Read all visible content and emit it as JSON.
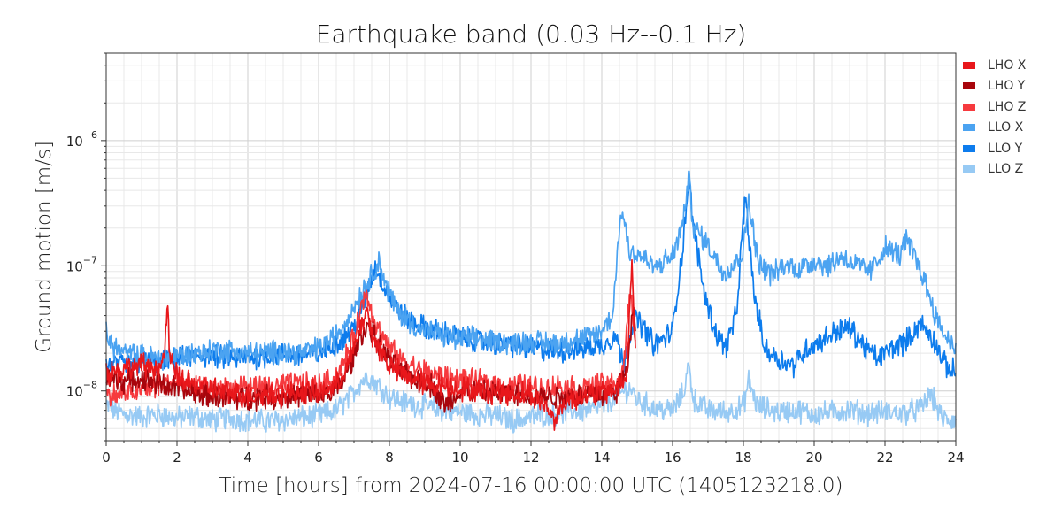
{
  "chart_data": {
    "type": "line",
    "title": "Earthquake band (0.03 Hz--0.1 Hz)",
    "xlabel": "Time [hours] from 2024-07-16 00:00:00 UTC (1405123218.0)",
    "ylabel": "Ground motion [m/s]",
    "xlim": [
      0,
      24
    ],
    "ylim": [
      4e-09,
      5e-06
    ],
    "yscale": "log",
    "grid": true,
    "legend_position": "right-top",
    "x_ticks": [
      "0",
      "2",
      "4",
      "6",
      "8",
      "10",
      "12",
      "14",
      "16",
      "18",
      "20",
      "22",
      "24"
    ],
    "series": [
      {
        "name": "LHO X",
        "color": "#e8171b",
        "points": [
          [
            0,
            1.4e-08
          ],
          [
            0.5,
            1.5e-08
          ],
          [
            1,
            1.6e-08
          ],
          [
            1.5,
            1.5e-08
          ],
          [
            1.65,
            1.9e-08
          ],
          [
            1.72,
            5e-08
          ],
          [
            1.8,
            1.8e-08
          ],
          [
            2,
            1.3e-08
          ],
          [
            2.5,
            1.1e-08
          ],
          [
            3,
            1.05e-08
          ],
          [
            3.5,
            9.5e-09
          ],
          [
            4,
            9.2e-09
          ],
          [
            4.5,
            9.5e-09
          ],
          [
            5,
            9.4e-09
          ],
          [
            5.5,
            9.8e-09
          ],
          [
            6,
            9.6e-09
          ],
          [
            6.5,
            1.1e-08
          ],
          [
            6.9,
            1.8e-08
          ],
          [
            7.2,
            3.2e-08
          ],
          [
            7.35,
            4.5e-08
          ],
          [
            7.5,
            2.8e-08
          ],
          [
            7.8,
            2e-08
          ],
          [
            8,
            1.6e-08
          ],
          [
            8.5,
            1.3e-08
          ],
          [
            9,
            1.15e-08
          ],
          [
            9.5,
            1.1e-08
          ],
          [
            10,
            1.05e-08
          ],
          [
            10.5,
            1e-08
          ],
          [
            11,
            9.8e-09
          ],
          [
            11.5,
            9.6e-09
          ],
          [
            12,
            9.5e-09
          ],
          [
            12.5,
            7e-09
          ],
          [
            12.7,
            6e-09
          ],
          [
            13,
            8.5e-09
          ],
          [
            13.5,
            9.2e-09
          ],
          [
            14,
            9.6e-09
          ],
          [
            14.4,
            1.05e-08
          ],
          [
            14.7,
            1.3e-08
          ],
          [
            14.85,
            1.05e-07
          ],
          [
            14.95,
            2.2e-08
          ]
        ]
      },
      {
        "name": "LHO Y",
        "color": "#a8050c",
        "points": [
          [
            0,
            1.25e-08
          ],
          [
            0.5,
            1.2e-08
          ],
          [
            1,
            1.25e-08
          ],
          [
            1.5,
            1.15e-08
          ],
          [
            2,
            1.05e-08
          ],
          [
            2.5,
            9.5e-09
          ],
          [
            3,
            9.2e-09
          ],
          [
            3.5,
            8.8e-09
          ],
          [
            4,
            8.8e-09
          ],
          [
            4.5,
            9e-09
          ],
          [
            5,
            8.9e-09
          ],
          [
            5.5,
            9.2e-09
          ],
          [
            6,
            9e-09
          ],
          [
            6.5,
            1e-08
          ],
          [
            6.9,
            1.6e-08
          ],
          [
            7.2,
            2.8e-08
          ],
          [
            7.4,
            3.4e-08
          ],
          [
            7.6,
            2.6e-08
          ],
          [
            7.9,
            1.9e-08
          ],
          [
            8.2,
            1.5e-08
          ],
          [
            8.7,
            1.25e-08
          ],
          [
            9.2,
            1.1e-08
          ],
          [
            9.6,
            7.5e-09
          ],
          [
            10,
            1e-08
          ],
          [
            10.5,
            9.8e-09
          ],
          [
            11,
            9.5e-09
          ],
          [
            11.5,
            9.3e-09
          ],
          [
            12,
            9.2e-09
          ],
          [
            12.5,
            9e-09
          ],
          [
            13,
            9.1e-09
          ],
          [
            13.5,
            9.3e-09
          ],
          [
            14,
            9.4e-09
          ],
          [
            14.4,
            9.8e-09
          ],
          [
            14.7,
            1.4e-08
          ],
          [
            14.9,
            5.5e-08
          ],
          [
            14.95,
            3e-08
          ]
        ]
      },
      {
        "name": "LHO Z",
        "color": "#f63a3e",
        "points": [
          [
            0,
            9e-09
          ],
          [
            0.5,
            9.5e-09
          ],
          [
            1,
            1e-08
          ],
          [
            1.5,
            1.1e-08
          ],
          [
            2,
            1.2e-08
          ],
          [
            2.5,
            1.1e-08
          ],
          [
            3,
            1e-08
          ],
          [
            3.5,
            1.05e-08
          ],
          [
            4,
            1.1e-08
          ],
          [
            4.5,
            1.05e-08
          ],
          [
            5,
            1.1e-08
          ],
          [
            5.5,
            1.15e-08
          ],
          [
            6,
            1.1e-08
          ],
          [
            6.5,
            1.3e-08
          ],
          [
            6.9,
            2.2e-08
          ],
          [
            7.2,
            4.5e-08
          ],
          [
            7.35,
            6.2e-08
          ],
          [
            7.6,
            3.5e-08
          ],
          [
            7.9,
            2.4e-08
          ],
          [
            8.3,
            1.8e-08
          ],
          [
            8.8,
            1.5e-08
          ],
          [
            9.3,
            1.35e-08
          ],
          [
            9.8,
            1.25e-08
          ],
          [
            10.3,
            1.2e-08
          ],
          [
            10.8,
            1.15e-08
          ],
          [
            11.3,
            1.1e-08
          ],
          [
            11.8,
            1.1e-08
          ],
          [
            12.3,
            1.05e-08
          ],
          [
            12.8,
            1.1e-08
          ],
          [
            13.3,
            1.05e-08
          ],
          [
            13.8,
            1.1e-08
          ],
          [
            14.3,
            1.15e-08
          ],
          [
            14.6,
            1.3e-08
          ],
          [
            14.8,
            6.5e-08
          ],
          [
            14.95,
            2.5e-08
          ]
        ]
      },
      {
        "name": "LLO X",
        "color": "#4ba3f1",
        "points": [
          [
            0,
            3.3e-08
          ],
          [
            0.1,
            2.4e-08
          ],
          [
            0.5,
            2e-08
          ],
          [
            1,
            1.9e-08
          ],
          [
            1.5,
            1.8e-08
          ],
          [
            2,
            1.9e-08
          ],
          [
            2.5,
            2e-08
          ],
          [
            3,
            2.1e-08
          ],
          [
            3.5,
            2.1e-08
          ],
          [
            4,
            2e-08
          ],
          [
            4.5,
            2e-08
          ],
          [
            5,
            2.1e-08
          ],
          [
            5.5,
            2e-08
          ],
          [
            6,
            2.2e-08
          ],
          [
            6.3,
            2.5e-08
          ],
          [
            6.6,
            3e-08
          ],
          [
            6.9,
            4.2e-08
          ],
          [
            7.2,
            6e-08
          ],
          [
            7.5,
            8.5e-08
          ],
          [
            7.7,
            1.1e-07
          ],
          [
            7.9,
            7e-08
          ],
          [
            8.2,
            4.5e-08
          ],
          [
            8.6,
            3.5e-08
          ],
          [
            9,
            3e-08
          ],
          [
            9.5,
            2.8e-08
          ],
          [
            10,
            2.6e-08
          ],
          [
            10.5,
            2.6e-08
          ],
          [
            11,
            2.5e-08
          ],
          [
            11.5,
            2.4e-08
          ],
          [
            12,
            2.5e-08
          ],
          [
            12.5,
            2.4e-08
          ],
          [
            13,
            2.5e-08
          ],
          [
            13.5,
            2.6e-08
          ],
          [
            14,
            3e-08
          ],
          [
            14.3,
            4e-08
          ],
          [
            14.55,
            2.9e-07
          ],
          [
            14.8,
            1.3e-07
          ],
          [
            15.1,
            1.2e-07
          ],
          [
            15.5,
            9.5e-08
          ],
          [
            16,
            1.2e-07
          ],
          [
            16.3,
            2.2e-07
          ],
          [
            16.45,
            5.2e-07
          ],
          [
            16.6,
            2e-07
          ],
          [
            17,
            1.5e-07
          ],
          [
            17.4,
            9e-08
          ],
          [
            17.7,
            1e-07
          ],
          [
            18,
            1.3e-07
          ],
          [
            18.15,
            3.5e-07
          ],
          [
            18.4,
            1.1e-07
          ],
          [
            18.8,
            8.5e-08
          ],
          [
            19.2,
            1e-07
          ],
          [
            19.6,
            9.5e-08
          ],
          [
            20,
            1.1e-07
          ],
          [
            20.4,
            1e-07
          ],
          [
            20.8,
            1.2e-07
          ],
          [
            21.2,
            1e-07
          ],
          [
            21.6,
            9e-08
          ],
          [
            22,
            1.4e-07
          ],
          [
            22.4,
            1.2e-07
          ],
          [
            22.6,
            1.6e-07
          ],
          [
            22.9,
            1.1e-07
          ],
          [
            23.2,
            6.5e-08
          ],
          [
            23.5,
            3.5e-08
          ],
          [
            23.8,
            2.5e-08
          ],
          [
            24,
            2.4e-08
          ]
        ]
      },
      {
        "name": "LLO Y",
        "color": "#0d7ced",
        "points": [
          [
            0,
            1.6e-08
          ],
          [
            0.5,
            1.6e-08
          ],
          [
            1,
            1.7e-08
          ],
          [
            1.5,
            1.65e-08
          ],
          [
            2,
            1.8e-08
          ],
          [
            2.5,
            1.9e-08
          ],
          [
            3,
            1.9e-08
          ],
          [
            3.5,
            1.8e-08
          ],
          [
            4,
            1.85e-08
          ],
          [
            4.5,
            1.9e-08
          ],
          [
            5,
            1.95e-08
          ],
          [
            5.5,
            1.9e-08
          ],
          [
            6,
            2e-08
          ],
          [
            6.5,
            2.4e-08
          ],
          [
            7,
            3.2e-08
          ],
          [
            7.3,
            5.2e-08
          ],
          [
            7.6,
            9.8e-08
          ],
          [
            7.9,
            6.5e-08
          ],
          [
            8.2,
            4.5e-08
          ],
          [
            8.6,
            3.6e-08
          ],
          [
            9,
            3.2e-08
          ],
          [
            9.5,
            2.9e-08
          ],
          [
            10,
            2.7e-08
          ],
          [
            10.5,
            2.5e-08
          ],
          [
            11,
            2.4e-08
          ],
          [
            11.5,
            2.3e-08
          ],
          [
            12,
            2.2e-08
          ],
          [
            12.5,
            2.1e-08
          ],
          [
            13,
            2.1e-08
          ],
          [
            13.5,
            2.2e-08
          ],
          [
            14,
            2.3e-08
          ],
          [
            14.4,
            2.8e-08
          ],
          [
            14.6,
            1.6e-08
          ],
          [
            14.8,
            3e-08
          ],
          [
            15,
            3.8e-08
          ],
          [
            15.5,
            2.3e-08
          ],
          [
            16,
            3e-08
          ],
          [
            16.3,
            1.5e-07
          ],
          [
            16.45,
            5e-07
          ],
          [
            16.6,
            2e-07
          ],
          [
            16.9,
            6e-08
          ],
          [
            17.2,
            3e-08
          ],
          [
            17.5,
            2.2e-08
          ],
          [
            17.8,
            4e-08
          ],
          [
            18.05,
            3.6e-07
          ],
          [
            18.3,
            6e-08
          ],
          [
            18.6,
            2.2e-08
          ],
          [
            19,
            1.8e-08
          ],
          [
            19.4,
            1.6e-08
          ],
          [
            19.8,
            2.2e-08
          ],
          [
            20.2,
            2.5e-08
          ],
          [
            20.6,
            3e-08
          ],
          [
            21,
            3.2e-08
          ],
          [
            21.4,
            2.3e-08
          ],
          [
            21.8,
            1.8e-08
          ],
          [
            22.2,
            2.2e-08
          ],
          [
            22.6,
            2.5e-08
          ],
          [
            23,
            3.5e-08
          ],
          [
            23.4,
            2.5e-08
          ],
          [
            23.7,
            1.6e-08
          ],
          [
            24,
            1.4e-08
          ]
        ]
      },
      {
        "name": "LLO Z",
        "color": "#97caf4",
        "points": [
          [
            0,
            7.5e-09
          ],
          [
            0.5,
            6.5e-09
          ],
          [
            1,
            6.2e-09
          ],
          [
            1.5,
            6.5e-09
          ],
          [
            2,
            6e-09
          ],
          [
            2.5,
            6.3e-09
          ],
          [
            3,
            5.8e-09
          ],
          [
            3.5,
            6.1e-09
          ],
          [
            4,
            5.9e-09
          ],
          [
            4.5,
            5.7e-09
          ],
          [
            5,
            5.9e-09
          ],
          [
            5.5,
            6.1e-09
          ],
          [
            6,
            6.3e-09
          ],
          [
            6.5,
            7e-09
          ],
          [
            6.9,
            9e-09
          ],
          [
            7.2,
            1.2e-08
          ],
          [
            7.4,
            1.3e-08
          ],
          [
            7.7,
            1.1e-08
          ],
          [
            8,
            9e-09
          ],
          [
            8.5,
            8e-09
          ],
          [
            9,
            7.5e-09
          ],
          [
            9.5,
            7e-09
          ],
          [
            10,
            6.8e-09
          ],
          [
            10.5,
            6.5e-09
          ],
          [
            11,
            6.3e-09
          ],
          [
            11.5,
            5.8e-09
          ],
          [
            12,
            6.2e-09
          ],
          [
            12.5,
            6.5e-09
          ],
          [
            13,
            6.8e-09
          ],
          [
            13.5,
            7e-09
          ],
          [
            14,
            7.5e-09
          ],
          [
            14.5,
            9.5e-09
          ],
          [
            14.8,
            1.05e-08
          ],
          [
            15,
            8.5e-09
          ],
          [
            15.5,
            7.2e-09
          ],
          [
            16,
            7e-09
          ],
          [
            16.3,
            9.5e-09
          ],
          [
            16.45,
            1.6e-08
          ],
          [
            16.6,
            8.5e-09
          ],
          [
            17,
            7e-09
          ],
          [
            17.5,
            6.8e-09
          ],
          [
            18,
            7.5e-09
          ],
          [
            18.15,
            1.2e-08
          ],
          [
            18.4,
            7.5e-09
          ],
          [
            19,
            6.8e-09
          ],
          [
            19.5,
            7e-09
          ],
          [
            20,
            6.5e-09
          ],
          [
            20.5,
            6.8e-09
          ],
          [
            21,
            7e-09
          ],
          [
            21.5,
            6.6e-09
          ],
          [
            22,
            6.8e-09
          ],
          [
            22.5,
            6.6e-09
          ],
          [
            23,
            7.2e-09
          ],
          [
            23.3,
            9.5e-09
          ],
          [
            23.6,
            6e-09
          ],
          [
            24,
            5.8e-09
          ]
        ]
      }
    ]
  }
}
